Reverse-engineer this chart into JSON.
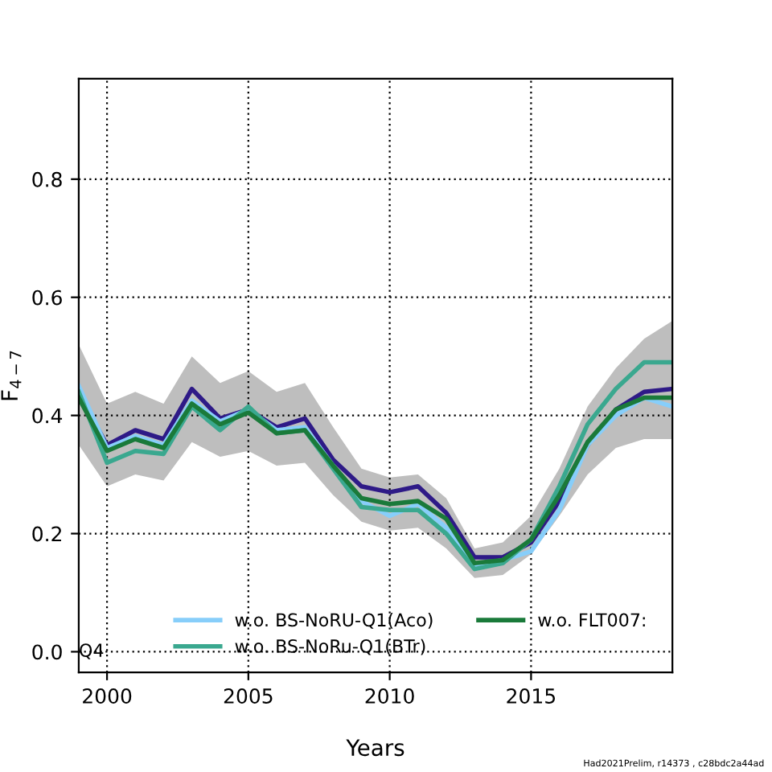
{
  "chart_data": {
    "type": "line",
    "xlabel": "Years",
    "ylabel": "F$_{4−7}$",
    "x": [
      1999,
      2000,
      2001,
      2002,
      2003,
      2004,
      2005,
      2006,
      2007,
      2008,
      2009,
      2010,
      2011,
      2012,
      2013,
      2014,
      2015,
      2016,
      2017,
      2018,
      2019,
      2020
    ],
    "xlim": [
      1999,
      2020
    ],
    "xticks": [
      2000,
      2005,
      2010,
      2015
    ],
    "ylim": [
      -0.035,
      0.97
    ],
    "yticks": [
      {
        "value": 0,
        "label": "0.0"
      },
      0.2,
      0.4,
      0.6,
      0.8
    ],
    "grid": true,
    "legend": "bottom",
    "line_style": "solid",
    "marker": "none",
    "series": [
      {
        "color": "#2e1a87",
        "values": [
          0.435,
          0.35,
          0.375,
          0.36,
          0.445,
          0.395,
          0.41,
          0.38,
          0.395,
          0.325,
          0.28,
          0.27,
          0.28,
          0.235,
          0.16,
          0.16,
          0.185,
          0.255,
          0.35,
          0.41,
          0.44,
          0.445
        ],
        "lower": [
          0.35,
          0.28,
          0.3,
          0.29,
          0.355,
          0.33,
          0.34,
          0.315,
          0.32,
          0.265,
          0.22,
          0.205,
          0.21,
          0.175,
          0.125,
          0.13,
          0.165,
          0.23,
          0.3,
          0.345,
          0.36,
          0.36
        ],
        "upper": [
          0.52,
          0.42,
          0.44,
          0.42,
          0.5,
          0.455,
          0.475,
          0.44,
          0.455,
          0.38,
          0.31,
          0.295,
          0.3,
          0.26,
          0.175,
          0.185,
          0.23,
          0.31,
          0.415,
          0.48,
          0.53,
          0.56
        ]
      },
      {
        "name": "w.o. BS-NoRU-Q1(Aco)",
        "color": "#87cefa",
        "values": [
          0.45,
          0.345,
          0.365,
          0.35,
          0.425,
          0.39,
          0.41,
          0.375,
          0.38,
          0.315,
          0.255,
          0.23,
          0.25,
          0.21,
          0.145,
          0.155,
          0.17,
          0.24,
          0.35,
          0.4,
          0.43,
          0.415
        ]
      },
      {
        "name": "w.o. BS-NoRu-Q1(BTr)",
        "color": "#3aa88f",
        "values": [
          0.44,
          0.32,
          0.34,
          0.335,
          0.415,
          0.375,
          0.415,
          0.37,
          0.375,
          0.31,
          0.245,
          0.24,
          0.24,
          0.2,
          0.14,
          0.15,
          0.19,
          0.28,
          0.385,
          0.445,
          0.49,
          0.49
        ]
      },
      {
        "name": "w.o. FLT007:",
        "color": "#1a7a3a",
        "values": [
          0.43,
          0.34,
          0.36,
          0.345,
          0.42,
          0.385,
          0.405,
          0.37,
          0.375,
          0.315,
          0.26,
          0.25,
          0.255,
          0.225,
          0.15,
          0.155,
          0.19,
          0.265,
          0.355,
          0.41,
          0.43,
          0.43
        ]
      }
    ],
    "annotations": [
      "Q4",
      "Had2021Prelim, r14373 , c28bdc2a44ad"
    ]
  }
}
